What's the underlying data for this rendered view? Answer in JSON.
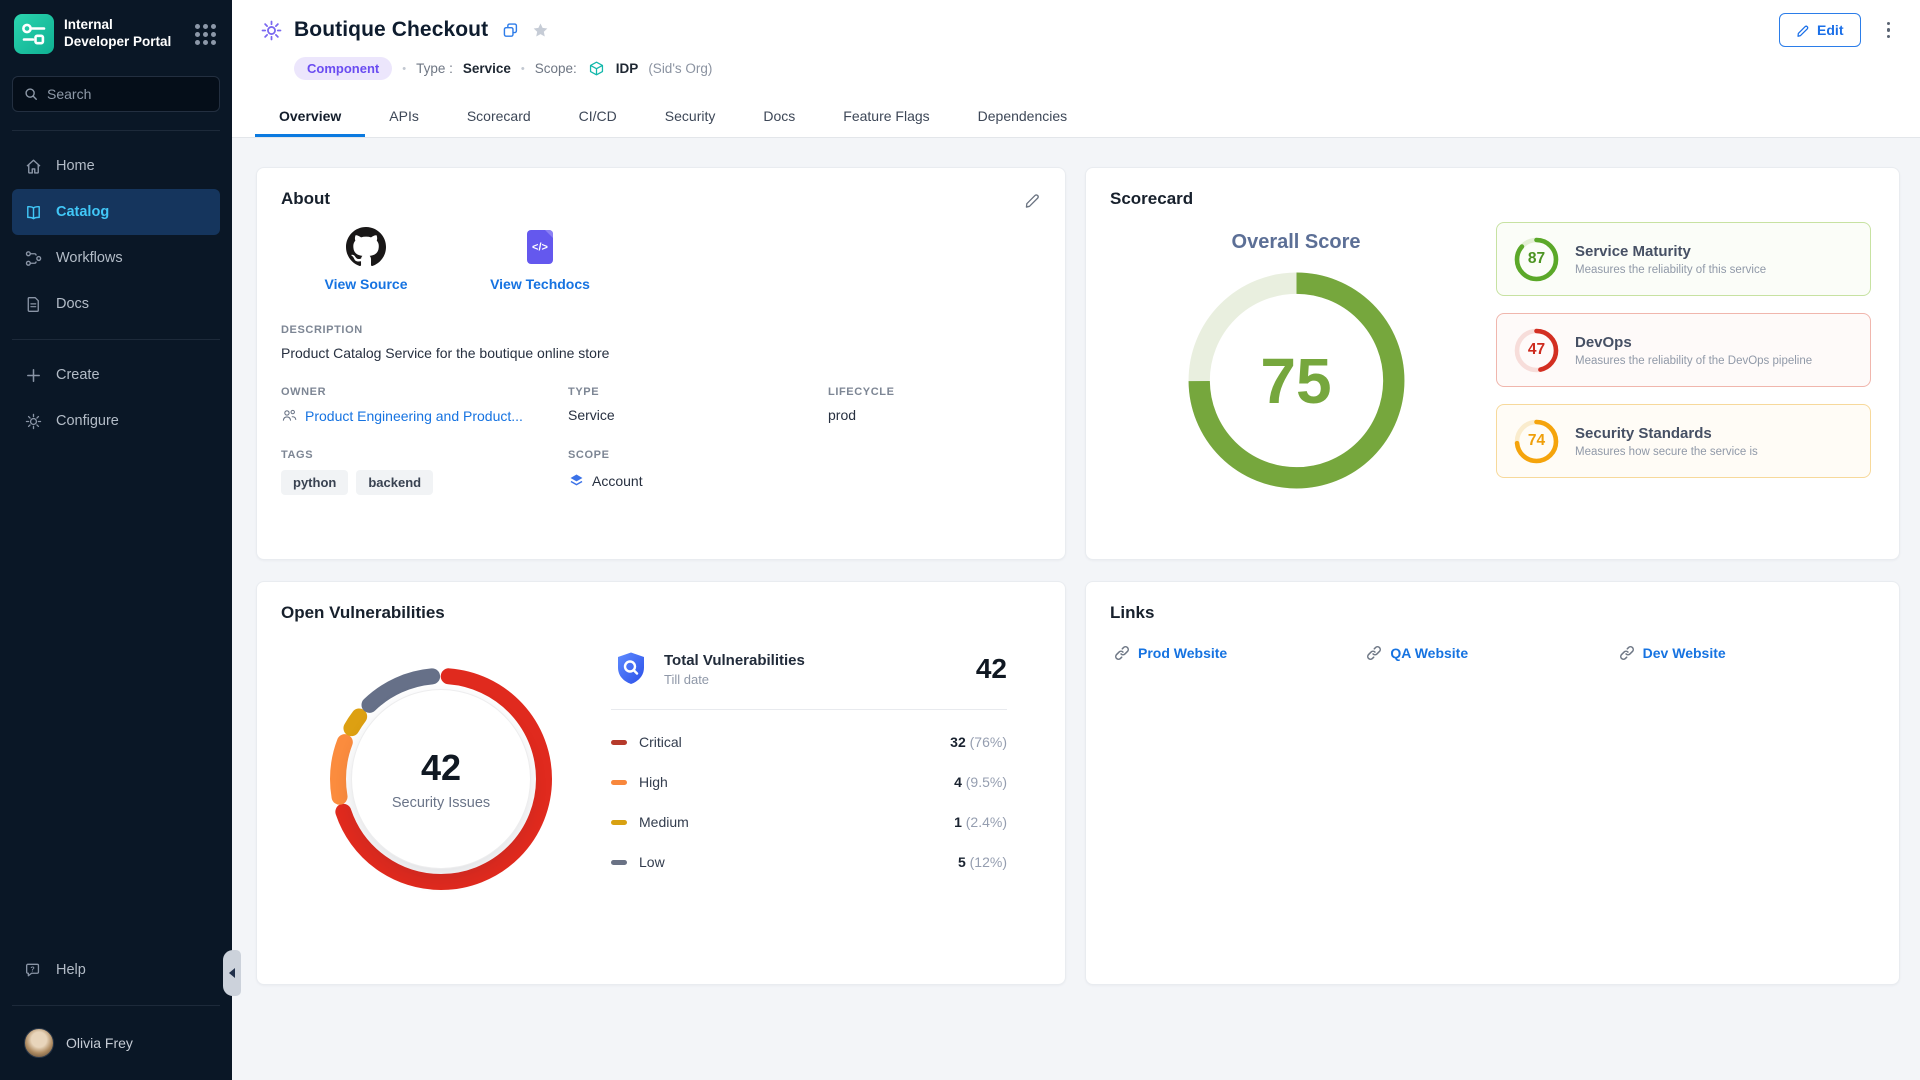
{
  "sidebar": {
    "logo_line1": "Internal",
    "logo_line2": "Developer Portal",
    "search_placeholder": "Search",
    "nav": [
      {
        "label": "Home"
      },
      {
        "label": "Catalog"
      },
      {
        "label": "Workflows"
      },
      {
        "label": "Docs"
      }
    ],
    "actions": [
      {
        "label": "Create"
      },
      {
        "label": "Configure"
      }
    ],
    "help_label": "Help",
    "user_name": "Olivia Frey"
  },
  "header": {
    "title": "Boutique Checkout",
    "kind_badge": "Component",
    "sep": "•",
    "type_label": "Type :",
    "type_value": "Service",
    "scope_label": "Scope:",
    "scope_value": "IDP",
    "scope_org": "(Sid's Org)",
    "edit_label": "Edit"
  },
  "tabs": [
    {
      "label": "Overview"
    },
    {
      "label": "APIs"
    },
    {
      "label": "Scorecard"
    },
    {
      "label": "CI/CD"
    },
    {
      "label": "Security"
    },
    {
      "label": "Docs"
    },
    {
      "label": "Feature Flags"
    },
    {
      "label": "Dependencies"
    }
  ],
  "about": {
    "title": "About",
    "source_label": "View Source",
    "techdocs_label": "View Techdocs",
    "techdocs_glyph": "</>",
    "description_label": "DESCRIPTION",
    "description": "Product Catalog Service for the boutique online store",
    "owner_label": "OWNER",
    "owner": "Product Engineering and Product...",
    "type_label": "TYPE",
    "type": "Service",
    "lifecycle_label": "LIFECYCLE",
    "lifecycle": "prod",
    "tags_label": "TAGS",
    "tags": [
      "python",
      "backend"
    ],
    "scope_label": "SCOPE",
    "scope": "Account"
  },
  "scorecard": {
    "title": "Scorecard",
    "overall_label": "Overall Score",
    "overall_score": 75,
    "overall_color": "#76a73d",
    "overall_track": "#e9efdf",
    "cards": [
      {
        "score": 87,
        "title": "Service Maturity",
        "desc": "Measures the reliability of this service",
        "ring": "#5ba829",
        "track": "#e3efd4",
        "num": "#4c9422",
        "border": "#c7e2a2",
        "bg": "#fbfdf8"
      },
      {
        "score": 47,
        "title": "DevOps",
        "desc": "Measures the reliability of the DevOps pipeline",
        "ring": "#d32f22",
        "track": "#f7ddda",
        "num": "#cd2a1d",
        "border": "#f0b6ad",
        "bg": "#fefaf9"
      },
      {
        "score": 74,
        "title": "Security Standards",
        "desc": "Measures how secure the service is",
        "ring": "#f5a40c",
        "track": "#faeccd",
        "num": "#ef9f0a",
        "border": "#f7d99b",
        "bg": "#fffcf6"
      }
    ]
  },
  "vulnerabilities": {
    "title": "Open Vulnerabilities",
    "donut_value": "42",
    "donut_label": "Security Issues",
    "total_title": "Total Vulnerabilities",
    "total_sub": "Till date",
    "total_value": "42",
    "rows": [
      {
        "label": "Critical",
        "count": "32",
        "pct_text": "(76%)",
        "pct": 76,
        "color": "#e02a1e",
        "dash": "#b63a2b"
      },
      {
        "label": "High",
        "count": "4",
        "pct_text": "(9.5%)",
        "pct": 9.5,
        "color": "#fb8c3e",
        "dash": "#f8873c"
      },
      {
        "label": "Medium",
        "count": "1",
        "pct_text": "(2.4%)",
        "pct": 2.4,
        "color": "#dda012",
        "dash": "#d8a112"
      },
      {
        "label": "Low",
        "count": "5",
        "pct_text": "(12%)",
        "pct": 12,
        "color": "#667088",
        "dash": "#6a7285"
      }
    ]
  },
  "links": {
    "title": "Links",
    "items": [
      {
        "label": "Prod Website"
      },
      {
        "label": "QA Website"
      },
      {
        "label": "Dev Website"
      }
    ]
  }
}
